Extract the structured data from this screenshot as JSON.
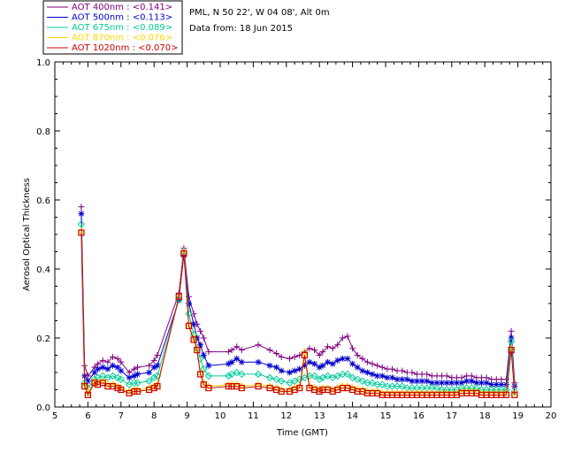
{
  "chart_data": {
    "type": "line",
    "title": "",
    "info_lines": [
      "PML, N 50 22', W 04 08', Alt 0m",
      "Data from: 18 Jun 2015"
    ],
    "xlabel": "Time (GMT)",
    "ylabel": "Aerosol Optical Thickness",
    "xlim": [
      5,
      20
    ],
    "ylim": [
      0,
      1
    ],
    "xticks": [
      "5",
      "6",
      "7",
      "8",
      "9",
      "10",
      "11",
      "12",
      "13",
      "14",
      "15",
      "16",
      "17",
      "18",
      "19",
      "20"
    ],
    "yticks": [
      "0.0",
      "0.2",
      "0.4",
      "0.6",
      "0.8",
      "1.0"
    ],
    "x": [
      5.8,
      5.9,
      6.0,
      6.2,
      6.3,
      6.45,
      6.6,
      6.75,
      6.9,
      7.0,
      7.25,
      7.4,
      7.5,
      7.85,
      8.0,
      8.1,
      8.75,
      8.9,
      9.05,
      9.2,
      9.3,
      9.4,
      9.5,
      9.65,
      10.25,
      10.35,
      10.5,
      10.65,
      11.15,
      11.5,
      11.7,
      11.85,
      12.1,
      12.25,
      12.4,
      12.55,
      12.7,
      12.85,
      13.0,
      13.1,
      13.25,
      13.4,
      13.55,
      13.7,
      13.85,
      14.0,
      14.15,
      14.3,
      14.45,
      14.6,
      14.75,
      14.9,
      15.05,
      15.2,
      15.35,
      15.5,
      15.65,
      15.8,
      15.95,
      16.1,
      16.25,
      16.4,
      16.55,
      16.7,
      16.85,
      17.0,
      17.15,
      17.3,
      17.45,
      17.6,
      17.75,
      17.9,
      18.05,
      18.2,
      18.35,
      18.5,
      18.65,
      18.8,
      18.9
    ],
    "series": [
      {
        "name": "AOT  400nm",
        "value_label": "<0.141>",
        "color": "#800080",
        "marker": "plus",
        "values": [
          0.58,
          0.12,
          0.09,
          0.115,
          0.125,
          0.135,
          0.13,
          0.145,
          0.14,
          0.13,
          0.1,
          0.11,
          0.115,
          0.12,
          0.135,
          0.15,
          0.33,
          0.46,
          0.32,
          0.27,
          0.24,
          0.22,
          0.2,
          0.16,
          0.16,
          0.165,
          0.175,
          0.165,
          0.18,
          0.165,
          0.155,
          0.145,
          0.14,
          0.145,
          0.15,
          0.16,
          0.17,
          0.165,
          0.15,
          0.16,
          0.175,
          0.17,
          0.18,
          0.2,
          0.205,
          0.17,
          0.15,
          0.14,
          0.13,
          0.125,
          0.12,
          0.115,
          0.11,
          0.11,
          0.105,
          0.105,
          0.1,
          0.1,
          0.095,
          0.095,
          0.095,
          0.09,
          0.09,
          0.09,
          0.09,
          0.085,
          0.085,
          0.085,
          0.09,
          0.09,
          0.085,
          0.085,
          0.085,
          0.08,
          0.08,
          0.08,
          0.08,
          0.22,
          0.07
        ]
      },
      {
        "name": "AOT  500nm",
        "value_label": "<0.113>",
        "color": "#0000cd",
        "marker": "star",
        "values": [
          0.56,
          0.09,
          0.075,
          0.1,
          0.11,
          0.115,
          0.11,
          0.12,
          0.115,
          0.105,
          0.085,
          0.09,
          0.095,
          0.1,
          0.115,
          0.12,
          0.31,
          0.44,
          0.3,
          0.24,
          0.2,
          0.18,
          0.15,
          0.12,
          0.125,
          0.13,
          0.14,
          0.13,
          0.13,
          0.12,
          0.115,
          0.105,
          0.1,
          0.105,
          0.11,
          0.12,
          0.13,
          0.125,
          0.115,
          0.12,
          0.13,
          0.125,
          0.135,
          0.14,
          0.14,
          0.125,
          0.115,
          0.105,
          0.1,
          0.095,
          0.09,
          0.09,
          0.085,
          0.085,
          0.08,
          0.08,
          0.08,
          0.075,
          0.075,
          0.075,
          0.075,
          0.07,
          0.07,
          0.07,
          0.07,
          0.07,
          0.07,
          0.07,
          0.075,
          0.075,
          0.07,
          0.07,
          0.07,
          0.065,
          0.065,
          0.065,
          0.065,
          0.2,
          0.06
        ]
      },
      {
        "name": "AOT  675nm",
        "value_label": "<0.089>",
        "color": "#00cc99",
        "marker": "diamond",
        "values": [
          0.53,
          0.07,
          0.055,
          0.08,
          0.085,
          0.09,
          0.085,
          0.09,
          0.085,
          0.08,
          0.065,
          0.07,
          0.07,
          0.075,
          0.085,
          0.09,
          0.31,
          0.45,
          0.27,
          0.21,
          0.17,
          0.14,
          0.11,
          0.09,
          0.09,
          0.095,
          0.1,
          0.095,
          0.095,
          0.085,
          0.08,
          0.075,
          0.07,
          0.075,
          0.08,
          0.085,
          0.09,
          0.09,
          0.08,
          0.085,
          0.09,
          0.085,
          0.09,
          0.095,
          0.095,
          0.085,
          0.08,
          0.075,
          0.07,
          0.07,
          0.065,
          0.065,
          0.06,
          0.06,
          0.06,
          0.06,
          0.055,
          0.055,
          0.055,
          0.055,
          0.055,
          0.055,
          0.055,
          0.05,
          0.05,
          0.05,
          0.05,
          0.055,
          0.055,
          0.055,
          0.055,
          0.05,
          0.05,
          0.05,
          0.05,
          0.05,
          0.05,
          0.19,
          0.045
        ]
      },
      {
        "name": "AOT  870nm",
        "value_label": "<0.076>",
        "color": "#ffd700",
        "marker": "triangle",
        "values": [
          0.51,
          0.065,
          0.04,
          0.075,
          0.07,
          0.075,
          0.065,
          0.065,
          0.06,
          0.055,
          0.045,
          0.05,
          0.05,
          0.055,
          0.06,
          0.065,
          0.32,
          0.45,
          0.24,
          0.2,
          0.17,
          0.1,
          0.07,
          0.06,
          0.065,
          0.065,
          0.065,
          0.06,
          0.065,
          0.06,
          0.055,
          0.05,
          0.05,
          0.055,
          0.06,
          0.16,
          0.06,
          0.055,
          0.05,
          0.055,
          0.055,
          0.05,
          0.055,
          0.06,
          0.06,
          0.055,
          0.05,
          0.05,
          0.045,
          0.045,
          0.045,
          0.04,
          0.04,
          0.04,
          0.04,
          0.04,
          0.04,
          0.04,
          0.04,
          0.04,
          0.04,
          0.04,
          0.04,
          0.04,
          0.04,
          0.04,
          0.04,
          0.045,
          0.045,
          0.045,
          0.045,
          0.04,
          0.04,
          0.04,
          0.04,
          0.04,
          0.04,
          0.17,
          0.04
        ]
      },
      {
        "name": "AOT 1020nm",
        "value_label": "<0.070>",
        "color": "#cc0000",
        "marker": "square",
        "values": [
          0.505,
          0.06,
          0.035,
          0.07,
          0.065,
          0.07,
          0.06,
          0.06,
          0.055,
          0.05,
          0.04,
          0.045,
          0.045,
          0.05,
          0.055,
          0.06,
          0.32,
          0.445,
          0.235,
          0.195,
          0.165,
          0.095,
          0.065,
          0.055,
          0.06,
          0.06,
          0.06,
          0.055,
          0.06,
          0.055,
          0.05,
          0.045,
          0.045,
          0.05,
          0.055,
          0.15,
          0.055,
          0.05,
          0.045,
          0.05,
          0.05,
          0.045,
          0.05,
          0.055,
          0.055,
          0.05,
          0.045,
          0.045,
          0.04,
          0.04,
          0.04,
          0.035,
          0.035,
          0.035,
          0.035,
          0.035,
          0.035,
          0.035,
          0.035,
          0.035,
          0.035,
          0.035,
          0.035,
          0.035,
          0.035,
          0.035,
          0.035,
          0.04,
          0.04,
          0.04,
          0.04,
          0.035,
          0.035,
          0.035,
          0.035,
          0.035,
          0.035,
          0.165,
          0.035
        ]
      }
    ]
  }
}
